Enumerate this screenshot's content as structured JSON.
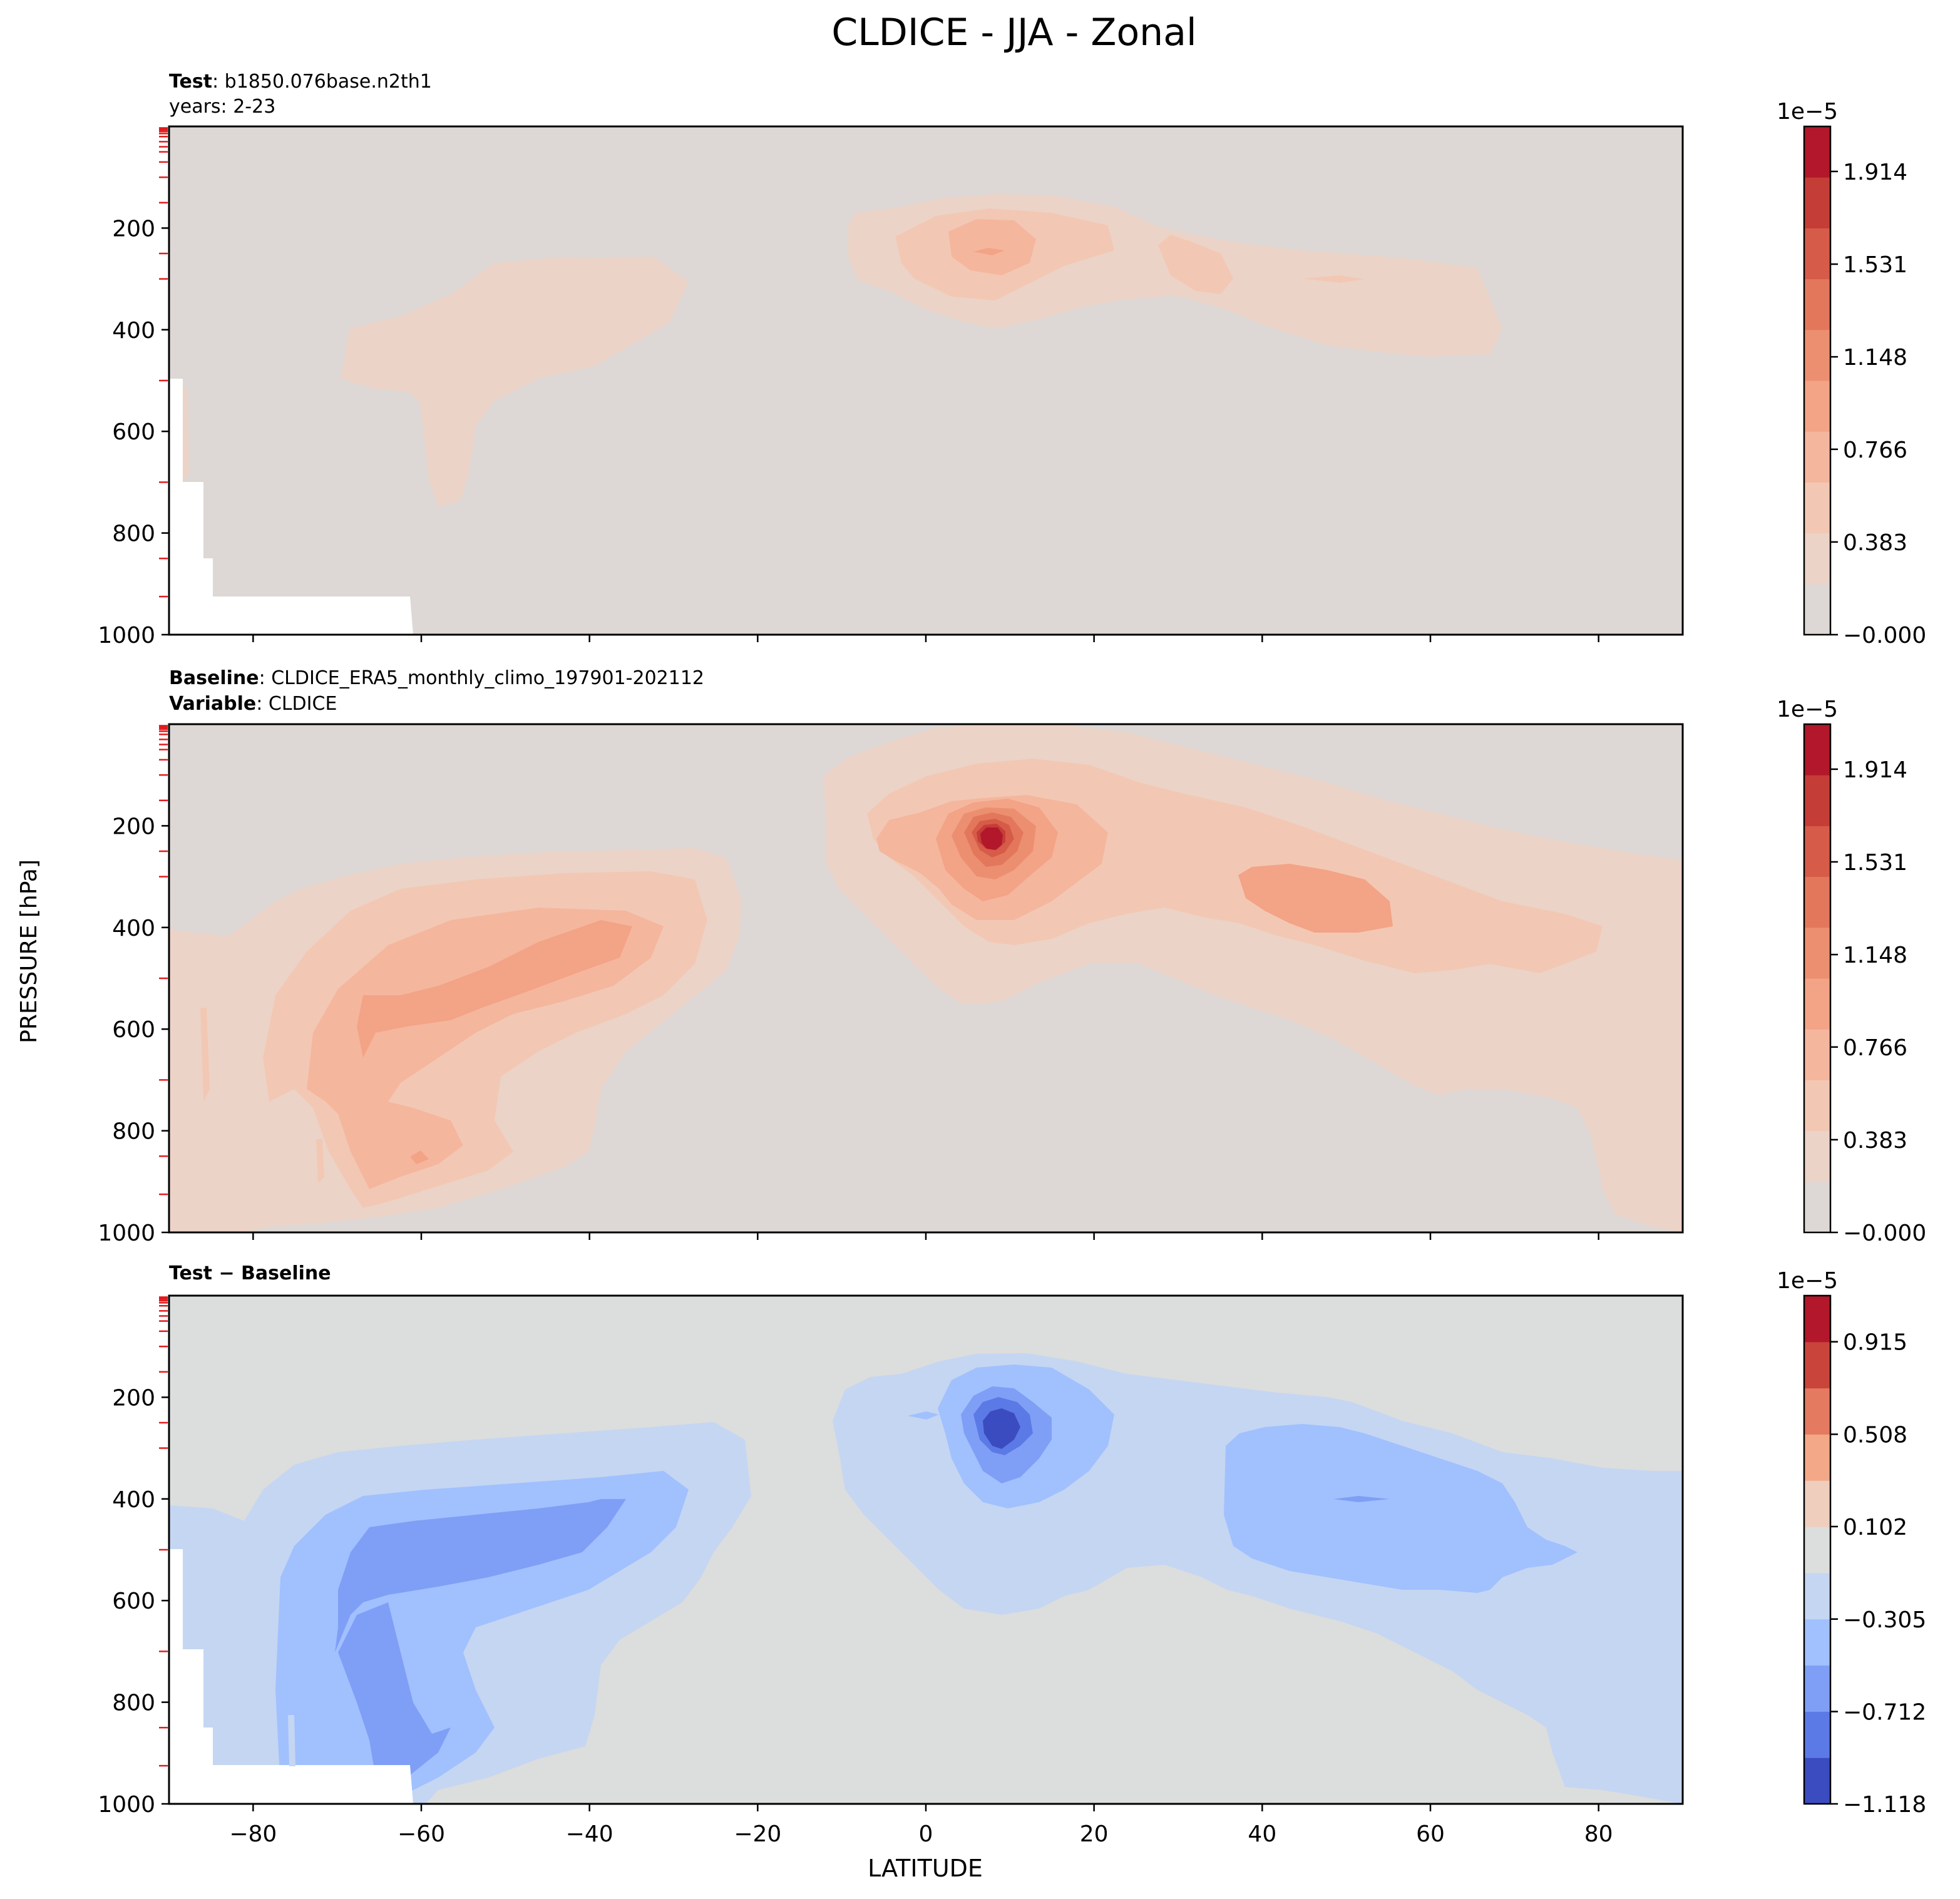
{
  "figure_title": "CLDICE - JJA - Zonal",
  "ylabel": "PRESSURE [hPa]",
  "xlabel": "LATITUDE",
  "colors": {
    "warm": [
      "#ddd8d5",
      "#ecd3c7",
      "#f2c8b4",
      "#f5b69e",
      "#f3a386",
      "#ec8f70",
      "#e3775c",
      "#d65b48",
      "#c53d37",
      "#b2172b"
    ],
    "diff": [
      "#3b4cc0",
      "#5b7ae6",
      "#7f9ff6",
      "#a1c0fe",
      "#c5d6f2",
      "#dcdddd",
      "#efcebd",
      "#f3a887",
      "#e47a60",
      "#c9443b",
      "#b2172b"
    ],
    "tick_red": "#e31a1c"
  },
  "chart_data": [
    {
      "type": "contourf",
      "panel": "test",
      "title_bold": "Test",
      "title_text": ": b1850.076base.n2th1",
      "subtitle": "years: 2-23",
      "xlim": [
        -90,
        90
      ],
      "ylim": [
        1000,
        0
      ],
      "x_ticks": [
        "−80",
        "−60",
        "−40",
        "−20",
        "0",
        "20",
        "40",
        "60",
        "80"
      ],
      "x_tick_values": [
        -80,
        -60,
        -40,
        -20,
        0,
        20,
        40,
        60,
        80
      ],
      "y_ticks": [
        "200",
        "400",
        "600",
        "800",
        "1000"
      ],
      "y_tick_values": [
        200,
        400,
        600,
        800,
        1000
      ],
      "show_xticklabels": false,
      "colorbar": {
        "multiplier": "1e−5",
        "levels": 11,
        "range": [
          0,
          2.1
        ],
        "tick_labels": [
          "1.914",
          "1.531",
          "1.148",
          "0.766",
          "0.383",
          "−0.000"
        ],
        "tick_values": [
          1.914,
          1.531,
          1.148,
          0.766,
          0.383,
          0.0
        ]
      },
      "features": [
        {
          "name": "antarctic-upper-cloud",
          "level": 1,
          "lat_range": [
            -70,
            -28
          ],
          "pressure_range": [
            250,
            750
          ]
        },
        {
          "name": "tropical-upper-cloud",
          "level": 1,
          "lat_range": [
            -9,
            22
          ],
          "pressure_range": [
            140,
            330
          ]
        },
        {
          "name": "tropical-core",
          "level": 2,
          "lat_range": [
            1,
            16
          ],
          "pressure_range": [
            170,
            300
          ]
        },
        {
          "name": "tropical-max",
          "level": 3,
          "lat_range": [
            6,
            10
          ],
          "pressure_range": [
            240,
            255
          ]
        },
        {
          "name": "northern-midlat-cloud",
          "level": 1,
          "lat_range": [
            22,
            68
          ],
          "pressure_range": [
            165,
            450
          ]
        }
      ]
    },
    {
      "type": "contourf",
      "panel": "baseline",
      "title_bold": "Baseline",
      "title_text": ": CLDICE_ERA5_monthly_climo_197901-202112",
      "subtitle_bold": "Variable",
      "subtitle_text": ": CLDICE",
      "xlim": [
        -90,
        90
      ],
      "ylim": [
        1000,
        0
      ],
      "x_ticks": [
        "−80",
        "−60",
        "−40",
        "−20",
        "0",
        "20",
        "40",
        "60",
        "80"
      ],
      "x_tick_values": [
        -80,
        -60,
        -40,
        -20,
        0,
        20,
        40,
        60,
        80
      ],
      "y_ticks": [
        "200",
        "400",
        "600",
        "800",
        "1000"
      ],
      "y_tick_values": [
        200,
        400,
        600,
        800,
        1000
      ],
      "show_xticklabels": false,
      "colorbar": {
        "multiplier": "1e−5",
        "levels": 11,
        "range": [
          0,
          2.1
        ],
        "tick_labels": [
          "1.914",
          "1.531",
          "1.148",
          "0.766",
          "0.383",
          "−0.000"
        ],
        "tick_values": [
          1.914,
          1.531,
          1.148,
          0.766,
          0.383,
          0.0
        ]
      },
      "features": [
        {
          "name": "southern-hemisphere-cloud",
          "level": 1,
          "lat_range": [
            -90,
            -22
          ],
          "pressure_range": [
            240,
            1000
          ]
        },
        {
          "name": "southern-midlat-core",
          "level": 2,
          "lat_range": [
            -78,
            -30
          ],
          "pressure_range": [
            300,
            960
          ]
        },
        {
          "name": "southern-midlat-max",
          "level": 3,
          "lat_range": [
            -67,
            -35
          ],
          "pressure_range": [
            390,
            650
          ]
        },
        {
          "name": "tropical-upper-cloud",
          "level": 1,
          "lat_range": [
            -12,
            30
          ],
          "pressure_range": [
            140,
            560
          ]
        },
        {
          "name": "tropical-core",
          "level": 2,
          "lat_range": [
            -5,
            22
          ],
          "pressure_range": [
            160,
            470
          ]
        },
        {
          "name": "tropical-max",
          "level": 9,
          "lat_range": [
            6,
            10
          ],
          "pressure_range": [
            210,
            270
          ]
        },
        {
          "name": "northern-cloud-band",
          "level": 1,
          "lat_range": [
            18,
            90
          ],
          "pressure_range": [
            170,
            980
          ]
        },
        {
          "name": "northern-midlat-core",
          "level": 2,
          "lat_range": [
            25,
            78
          ],
          "pressure_range": [
            200,
            530
          ]
        },
        {
          "name": "northern-midlat-max",
          "level": 3,
          "lat_range": [
            37,
            56
          ],
          "pressure_range": [
            280,
            420
          ]
        }
      ]
    },
    {
      "type": "contourf",
      "panel": "difference",
      "title_bold": "Test − Baseline",
      "xlim": [
        -90,
        90
      ],
      "ylim": [
        1000,
        0
      ],
      "x_ticks": [
        "−80",
        "−60",
        "−40",
        "−20",
        "0",
        "20",
        "40",
        "60",
        "80"
      ],
      "x_tick_values": [
        -80,
        -60,
        -40,
        -20,
        0,
        20,
        40,
        60,
        80
      ],
      "y_ticks": [
        "200",
        "400",
        "600",
        "800",
        "1000"
      ],
      "y_tick_values": [
        200,
        400,
        600,
        800,
        1000
      ],
      "show_xticklabels": true,
      "colorbar": {
        "multiplier": "1e−5",
        "levels": 11,
        "range": [
          -1.118,
          1.118
        ],
        "tick_labels": [
          "0.915",
          "0.508",
          "0.102",
          "−0.305",
          "−0.712",
          "−1.118"
        ],
        "tick_values": [
          0.915,
          0.508,
          0.102,
          -0.305,
          -0.712,
          -1.118
        ]
      },
      "features": [
        {
          "name": "southern-hemisphere-deficit",
          "level": -1,
          "lat_range": [
            -90,
            -20
          ],
          "pressure_range": [
            240,
            1000
          ]
        },
        {
          "name": "southern-midlat-deficit-core",
          "level": -2,
          "lat_range": [
            -77,
            -28
          ],
          "pressure_range": [
            370,
            990
          ]
        },
        {
          "name": "southern-midlat-deficit-max",
          "level": -3,
          "lat_range": [
            -70,
            -35
          ],
          "pressure_range": [
            390,
            860
          ]
        },
        {
          "name": "tropical-deficit",
          "level": -1,
          "lat_range": [
            -11,
            34
          ],
          "pressure_range": [
            120,
            590
          ]
        },
        {
          "name": "tropical-deficit-core",
          "level": -2,
          "lat_range": [
            3,
            23
          ],
          "pressure_range": [
            150,
            480
          ]
        },
        {
          "name": "tropical-deficit-max",
          "level": -4,
          "lat_range": [
            5,
            12
          ],
          "pressure_range": [
            230,
            290
          ]
        },
        {
          "name": "northern-deficit",
          "level": -1,
          "lat_range": [
            30,
            90
          ],
          "pressure_range": [
            180,
            970
          ]
        },
        {
          "name": "northern-deficit-core",
          "level": -2,
          "lat_range": [
            35,
            80
          ],
          "pressure_range": [
            260,
            580
          ]
        }
      ]
    }
  ]
}
